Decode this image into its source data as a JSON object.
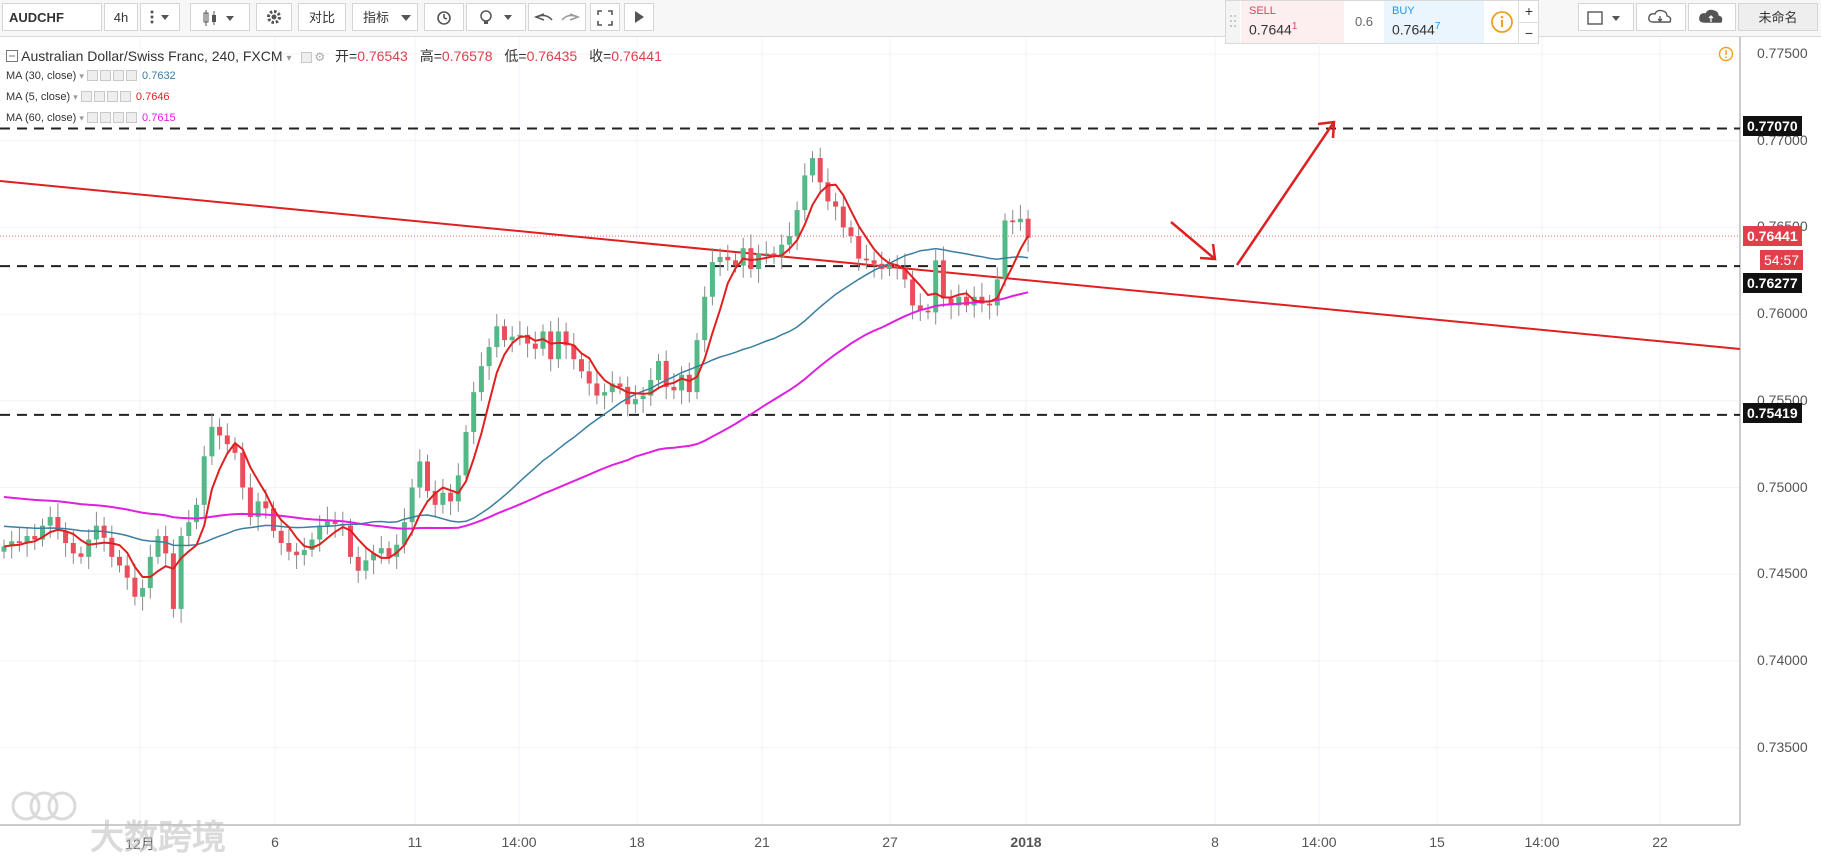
{
  "toolbar": {
    "symbol": "AUDCHF",
    "interval": "4h",
    "compare_label": "对比",
    "indicators_label": "指标",
    "account_label": "未命名"
  },
  "trade": {
    "sell_label": "SELL",
    "sell_price": "0.7644",
    "sell_sup": "1",
    "spread": "0.6",
    "buy_label": "BUY",
    "buy_price": "0.7644",
    "buy_sup": "7",
    "plus": "+",
    "minus": "−"
  },
  "legend": {
    "title": "Australian Dollar/Swiss Franc, 240, FXCM",
    "open_label": "开=",
    "open": "0.76543",
    "high_label": "高=",
    "high": "0.76578",
    "low_label": "低=",
    "low": "0.76435",
    "close_label": "收=",
    "close": "0.76441",
    "ma30_label": "MA (30, close)",
    "ma30_value": "0.7632",
    "ma5_label": "MA (5, close)",
    "ma5_value": "0.7646",
    "ma60_label": "MA (60, close)",
    "ma60_value": "0.7615"
  },
  "price_labels": {
    "resistance": "0.77070",
    "current": "0.76441",
    "countdown": "54:57",
    "support_mid": "0.76277",
    "support_low": "0.75419"
  },
  "watermark": "大数跨境",
  "chart_data": {
    "type": "candlestick",
    "symbol": "AUDCHF",
    "timeframe": "240",
    "y_ticks": [
      0.775,
      0.77,
      0.765,
      0.76,
      0.755,
      0.75,
      0.745,
      0.74,
      0.735
    ],
    "y_tick_labels": [
      "0.77500",
      "0.77000",
      "0.76500",
      "0.76000",
      "0.75500",
      "0.75000",
      "0.74500",
      "0.74000",
      "0.73500"
    ],
    "x_tick_labels": [
      "12月",
      "6",
      "11",
      "14:00",
      "18",
      "21",
      "27",
      "2018",
      "8",
      "14:00",
      "15",
      "14:00",
      "22"
    ],
    "horizontal_levels": [
      0.7707,
      0.76277,
      0.75419
    ],
    "close": [
      0.7466,
      0.7469,
      0.7468,
      0.7472,
      0.747,
      0.7478,
      0.7483,
      0.7475,
      0.7468,
      0.7462,
      0.746,
      0.747,
      0.7478,
      0.7471,
      0.746,
      0.7455,
      0.7448,
      0.7437,
      0.7442,
      0.746,
      0.7472,
      0.7462,
      0.743,
      0.7472,
      0.748,
      0.749,
      0.7518,
      0.7535,
      0.753,
      0.7525,
      0.752,
      0.75,
      0.7483,
      0.7492,
      0.7488,
      0.7475,
      0.7468,
      0.7463,
      0.7461,
      0.7464,
      0.747,
      0.7478,
      0.7481,
      0.7479,
      0.7478,
      0.746,
      0.7452,
      0.7458,
      0.7462,
      0.7465,
      0.746,
      0.7467,
      0.748,
      0.75,
      0.7515,
      0.7498,
      0.749,
      0.7497,
      0.7492,
      0.7507,
      0.7532,
      0.7555,
      0.757,
      0.7581,
      0.7593,
      0.7585,
      0.7587,
      0.7588,
      0.7583,
      0.758,
      0.759,
      0.7574,
      0.759,
      0.7582,
      0.7574,
      0.7567,
      0.756,
      0.7553,
      0.7555,
      0.756,
      0.7558,
      0.7548,
      0.7551,
      0.7553,
      0.7562,
      0.7573,
      0.7558,
      0.7556,
      0.7565,
      0.7555,
      0.7585,
      0.761,
      0.763,
      0.7633,
      0.7631,
      0.7628,
      0.7638,
      0.7626,
      0.7635,
      0.7635,
      0.7633,
      0.764,
      0.7645,
      0.766,
      0.768,
      0.769,
      0.7676,
      0.7665,
      0.7662,
      0.765,
      0.7645,
      0.7632,
      0.7631,
      0.7629,
      0.7626,
      0.7628,
      0.7627,
      0.762,
      0.7605,
      0.7602,
      0.7601,
      0.7631,
      0.7609,
      0.7605,
      0.761,
      0.7605,
      0.761,
      0.7606,
      0.7605,
      0.762,
      0.7654,
      0.7653,
      0.7655,
      0.7644
    ]
  }
}
